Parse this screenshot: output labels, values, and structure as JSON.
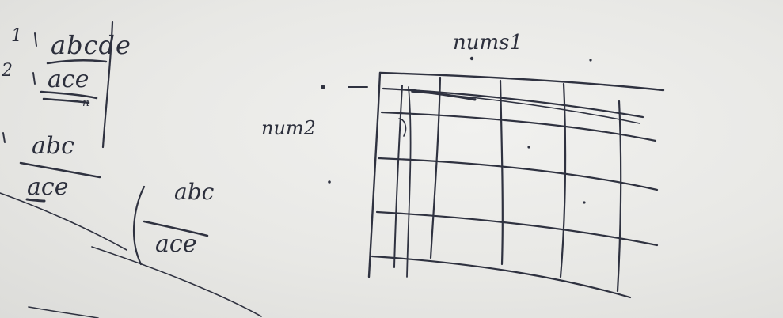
{
  "whiteboard": {
    "labels": {
      "row_1": "1",
      "row_2": "2",
      "word_top": "abcde",
      "word_second": "ace",
      "mark_n": "n",
      "pair_left_top": "abc",
      "pair_left_bottom": "ace",
      "pair_right_top": "abc",
      "pair_right_bottom": "ace",
      "grid_top_label": "nums1",
      "grid_side_label": "num2"
    },
    "grid": {
      "columns": 5,
      "rows": 5
    },
    "ink_color": "#2f3240"
  }
}
